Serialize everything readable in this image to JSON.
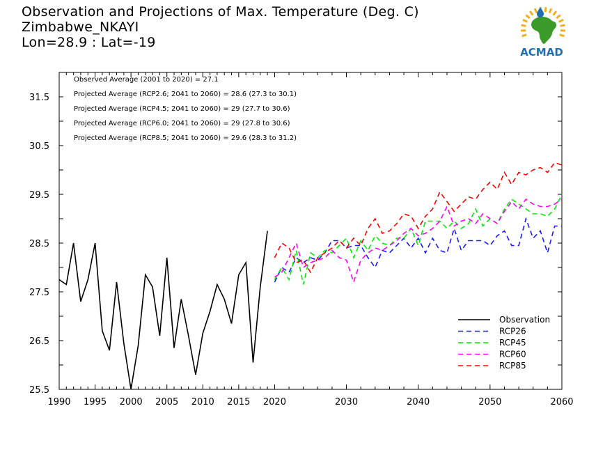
{
  "header": {
    "title_line1": "Observation and Projections of Max. Temperature (Deg. C)",
    "title_line2": "Zimbabwe_NKAYI",
    "title_line3": "Lon=28.9 : Lat=-19"
  },
  "logo": {
    "text": "ACMAD",
    "icon": "africa-sun-logo",
    "color_text": "#1f6fb0",
    "color_africa": "#3a9a2a",
    "color_sun": "#f0b020",
    "color_drop": "#1f6fb0"
  },
  "chart_data": {
    "type": "line",
    "xlim": [
      1990,
      2060
    ],
    "ylim": [
      25.5,
      32.0
    ],
    "x_ticks": [
      1990,
      1995,
      2000,
      2005,
      2010,
      2015,
      2020,
      2030,
      2040,
      2050,
      2060
    ],
    "y_ticks": [
      25.5,
      26.5,
      27.5,
      28.5,
      29.5,
      30.5,
      31.5
    ],
    "annotations": [
      "Observed Average (2001 to 2020) = 27.1",
      "Projected Average (RCP2.6; 2041 to 2060) = 28.6 (27.3 to 30.1)",
      "Projected Average (RCP4.5; 2041 to 2060) = 29 (27.7 to 30.6)",
      "Projected Average (RCP6.0; 2041 to 2060) = 29 (27.8 to 30.6)",
      "Projected Average (RCP8.5; 2041 to 2060) = 29.6 (28.3 to 31.2)"
    ],
    "legend_position": "bottom-right",
    "series": [
      {
        "name": "Observation",
        "color": "#000000",
        "dash": false,
        "x": [
          1990,
          1991,
          1992,
          1993,
          1994,
          1995,
          1996,
          1997,
          1998,
          1999,
          2000,
          2001,
          2002,
          2003,
          2004,
          2005,
          2006,
          2007,
          2008,
          2009,
          2010,
          2011,
          2012,
          2013,
          2014,
          2015,
          2016,
          2017,
          2018,
          2019,
          2020
        ],
        "y": [
          27.75,
          27.65,
          28.5,
          27.3,
          27.75,
          28.5,
          26.7,
          26.3,
          27.7,
          26.45,
          25.5,
          26.4,
          27.85,
          27.6,
          26.6,
          28.2,
          26.35,
          27.35,
          26.6,
          25.8,
          26.65,
          27.1,
          27.65,
          27.35,
          26.85,
          27.85,
          28.1,
          26.05,
          27.6,
          28.75,
          null
        ]
      },
      {
        "name": "RCP26",
        "color": "#1a1aff",
        "dash": true,
        "x": [
          2020,
          2021,
          2022,
          2023,
          2024,
          2025,
          2026,
          2027,
          2028,
          2029,
          2030,
          2031,
          2032,
          2033,
          2034,
          2035,
          2036,
          2037,
          2038,
          2039,
          2040,
          2041,
          2042,
          2043,
          2044,
          2045,
          2046,
          2047,
          2048,
          2049,
          2050,
          2051,
          2052,
          2053,
          2054,
          2055,
          2056,
          2057,
          2058,
          2059,
          2060
        ],
        "y": [
          27.7,
          28.0,
          27.9,
          28.2,
          28.1,
          28.2,
          28.15,
          28.3,
          28.55,
          28.55,
          28.4,
          28.45,
          28.45,
          28.2,
          28.0,
          28.35,
          28.3,
          28.45,
          28.6,
          28.4,
          28.6,
          28.3,
          28.6,
          28.35,
          28.3,
          28.8,
          28.35,
          28.55,
          28.55,
          28.55,
          28.45,
          28.65,
          28.75,
          28.45,
          28.45,
          29.0,
          28.6,
          28.75,
          28.3,
          28.85,
          28.85
        ]
      },
      {
        "name": "RCP45",
        "color": "#00ee00",
        "dash": true,
        "x": [
          2020,
          2021,
          2022,
          2023,
          2024,
          2025,
          2026,
          2027,
          2028,
          2029,
          2030,
          2031,
          2032,
          2033,
          2034,
          2035,
          2036,
          2037,
          2038,
          2039,
          2040,
          2041,
          2042,
          2043,
          2044,
          2045,
          2046,
          2047,
          2048,
          2049,
          2050,
          2051,
          2052,
          2053,
          2054,
          2055,
          2056,
          2057,
          2058,
          2059,
          2060
        ],
        "y": [
          27.75,
          28.0,
          27.75,
          28.35,
          27.65,
          28.3,
          28.2,
          28.35,
          28.3,
          28.45,
          28.6,
          28.2,
          28.55,
          28.35,
          28.65,
          28.5,
          28.45,
          28.6,
          28.6,
          28.8,
          28.45,
          28.95,
          28.95,
          28.95,
          28.8,
          28.95,
          28.8,
          28.9,
          29.2,
          28.85,
          29.0,
          28.9,
          29.2,
          29.4,
          29.3,
          29.2,
          29.1,
          29.1,
          29.05,
          29.2,
          29.5
        ]
      },
      {
        "name": "RCP60",
        "color": "#ff00ff",
        "dash": true,
        "x": [
          2020,
          2021,
          2022,
          2023,
          2024,
          2025,
          2026,
          2027,
          2028,
          2029,
          2030,
          2031,
          2032,
          2033,
          2034,
          2035,
          2036,
          2037,
          2038,
          2039,
          2040,
          2041,
          2042,
          2043,
          2044,
          2045,
          2046,
          2047,
          2048,
          2049,
          2050,
          2051,
          2052,
          2053,
          2054,
          2055,
          2056,
          2057,
          2058,
          2059,
          2060
        ],
        "y": [
          27.8,
          27.9,
          28.2,
          28.5,
          28.0,
          28.1,
          28.15,
          28.2,
          28.35,
          28.2,
          28.15,
          27.7,
          28.15,
          28.3,
          28.4,
          28.35,
          28.45,
          28.55,
          28.7,
          28.8,
          28.65,
          28.7,
          28.8,
          28.95,
          29.25,
          28.85,
          28.95,
          29.0,
          28.9,
          29.1,
          29.0,
          28.9,
          29.15,
          29.35,
          29.2,
          29.4,
          29.3,
          29.25,
          29.25,
          29.3,
          29.4
        ]
      },
      {
        "name": "RCP85",
        "color": "#ff0000",
        "dash": true,
        "x": [
          2020,
          2021,
          2022,
          2023,
          2024,
          2025,
          2026,
          2027,
          2028,
          2029,
          2030,
          2031,
          2032,
          2033,
          2034,
          2035,
          2036,
          2037,
          2038,
          2039,
          2040,
          2041,
          2042,
          2043,
          2044,
          2045,
          2046,
          2047,
          2048,
          2049,
          2050,
          2051,
          2052,
          2053,
          2054,
          2055,
          2056,
          2057,
          2058,
          2059,
          2060
        ],
        "y": [
          28.2,
          28.5,
          28.4,
          28.1,
          28.15,
          27.9,
          28.2,
          28.3,
          28.4,
          28.55,
          28.4,
          28.6,
          28.45,
          28.8,
          29.0,
          28.7,
          28.75,
          28.9,
          29.1,
          29.05,
          28.8,
          29.05,
          29.2,
          29.55,
          29.35,
          29.15,
          29.3,
          29.45,
          29.4,
          29.6,
          29.75,
          29.6,
          29.95,
          29.7,
          29.95,
          29.9,
          30.0,
          30.05,
          29.95,
          30.15,
          30.1
        ]
      }
    ]
  }
}
